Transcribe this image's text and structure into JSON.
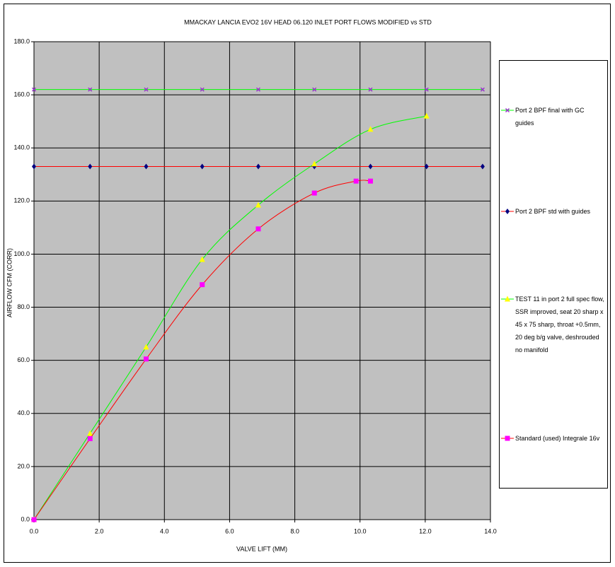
{
  "chart_data": {
    "type": "line",
    "title": "MMACKAY LANCIA EVO2 16V HEAD 06.120 INLET PORT FLOWS MODIFIED vs STD",
    "x_label": "VALVE LIFT (MM)",
    "y_label": "AIRFLOW CFM (CORR)",
    "xlim": [
      0,
      14
    ],
    "ylim": [
      0,
      180
    ],
    "xticks": [
      {
        "value": 0,
        "label": "0.0"
      },
      {
        "value": 2,
        "label": "2.0"
      },
      {
        "value": 4,
        "label": "4.0"
      },
      {
        "value": 6,
        "label": "6.0"
      },
      {
        "value": 8,
        "label": "8.0"
      },
      {
        "value": 10,
        "label": "10.0"
      },
      {
        "value": 12,
        "label": "12.0"
      },
      {
        "value": 14,
        "label": "14.0"
      }
    ],
    "yticks": [
      {
        "value": 0,
        "label": "0.0"
      },
      {
        "value": 20,
        "label": "20.0"
      },
      {
        "value": 40,
        "label": "40.0"
      },
      {
        "value": 60,
        "label": "60.0"
      },
      {
        "value": 80,
        "label": "80.0"
      },
      {
        "value": 100,
        "label": "100.0"
      },
      {
        "value": 120,
        "label": "120.0"
      },
      {
        "value": 140,
        "label": "140.0"
      },
      {
        "value": 160,
        "label": "160.0"
      },
      {
        "value": 180,
        "label": "180.0"
      }
    ],
    "grid": true,
    "plot_background": "#c0c0c0",
    "legend": "right",
    "series": [
      {
        "name": "Port 2 BPF final with GC guides",
        "color": "#00ff00",
        "marker": "x",
        "marker_color": "#9933cc",
        "x": [
          0,
          1.72,
          3.44,
          5.16,
          6.88,
          8.6,
          10.32,
          12.04,
          13.76
        ],
        "values": [
          162,
          162,
          162,
          162,
          162,
          162,
          162,
          162,
          162
        ]
      },
      {
        "name": "Port 2 BPF std with guides",
        "color": "#ff0000",
        "marker": "diamond",
        "marker_color": "#000080",
        "x": [
          0,
          1.72,
          3.44,
          5.16,
          6.88,
          8.6,
          10.32,
          12.04,
          13.76
        ],
        "values": [
          133,
          133,
          133,
          133,
          133,
          133,
          133,
          133,
          133
        ]
      },
      {
        "name": "TEST 11 in port 2 full spec flow, SSR improved, seat 20 sharp x 45 x 75 sharp, throat +0.5mm, 20 deg b/g valve, deshrouded no manifold",
        "color": "#00ff00",
        "marker": "triangle",
        "marker_color": "#ffff00",
        "x": [
          0,
          1.72,
          3.44,
          5.16,
          6.88,
          8.6,
          10.32,
          12.04
        ],
        "values": [
          0,
          32.5,
          65,
          98,
          118.5,
          134,
          147,
          152
        ]
      },
      {
        "name": "Standard (used) Integrale 16v",
        "color": "#ff0000",
        "marker": "square",
        "marker_color": "#ff00ff",
        "x": [
          0,
          1.72,
          3.44,
          5.16,
          6.88,
          8.6,
          9.88,
          10.32
        ],
        "values": [
          0,
          30.5,
          60.5,
          88.5,
          109.5,
          123,
          127.5,
          127.5
        ]
      }
    ]
  }
}
